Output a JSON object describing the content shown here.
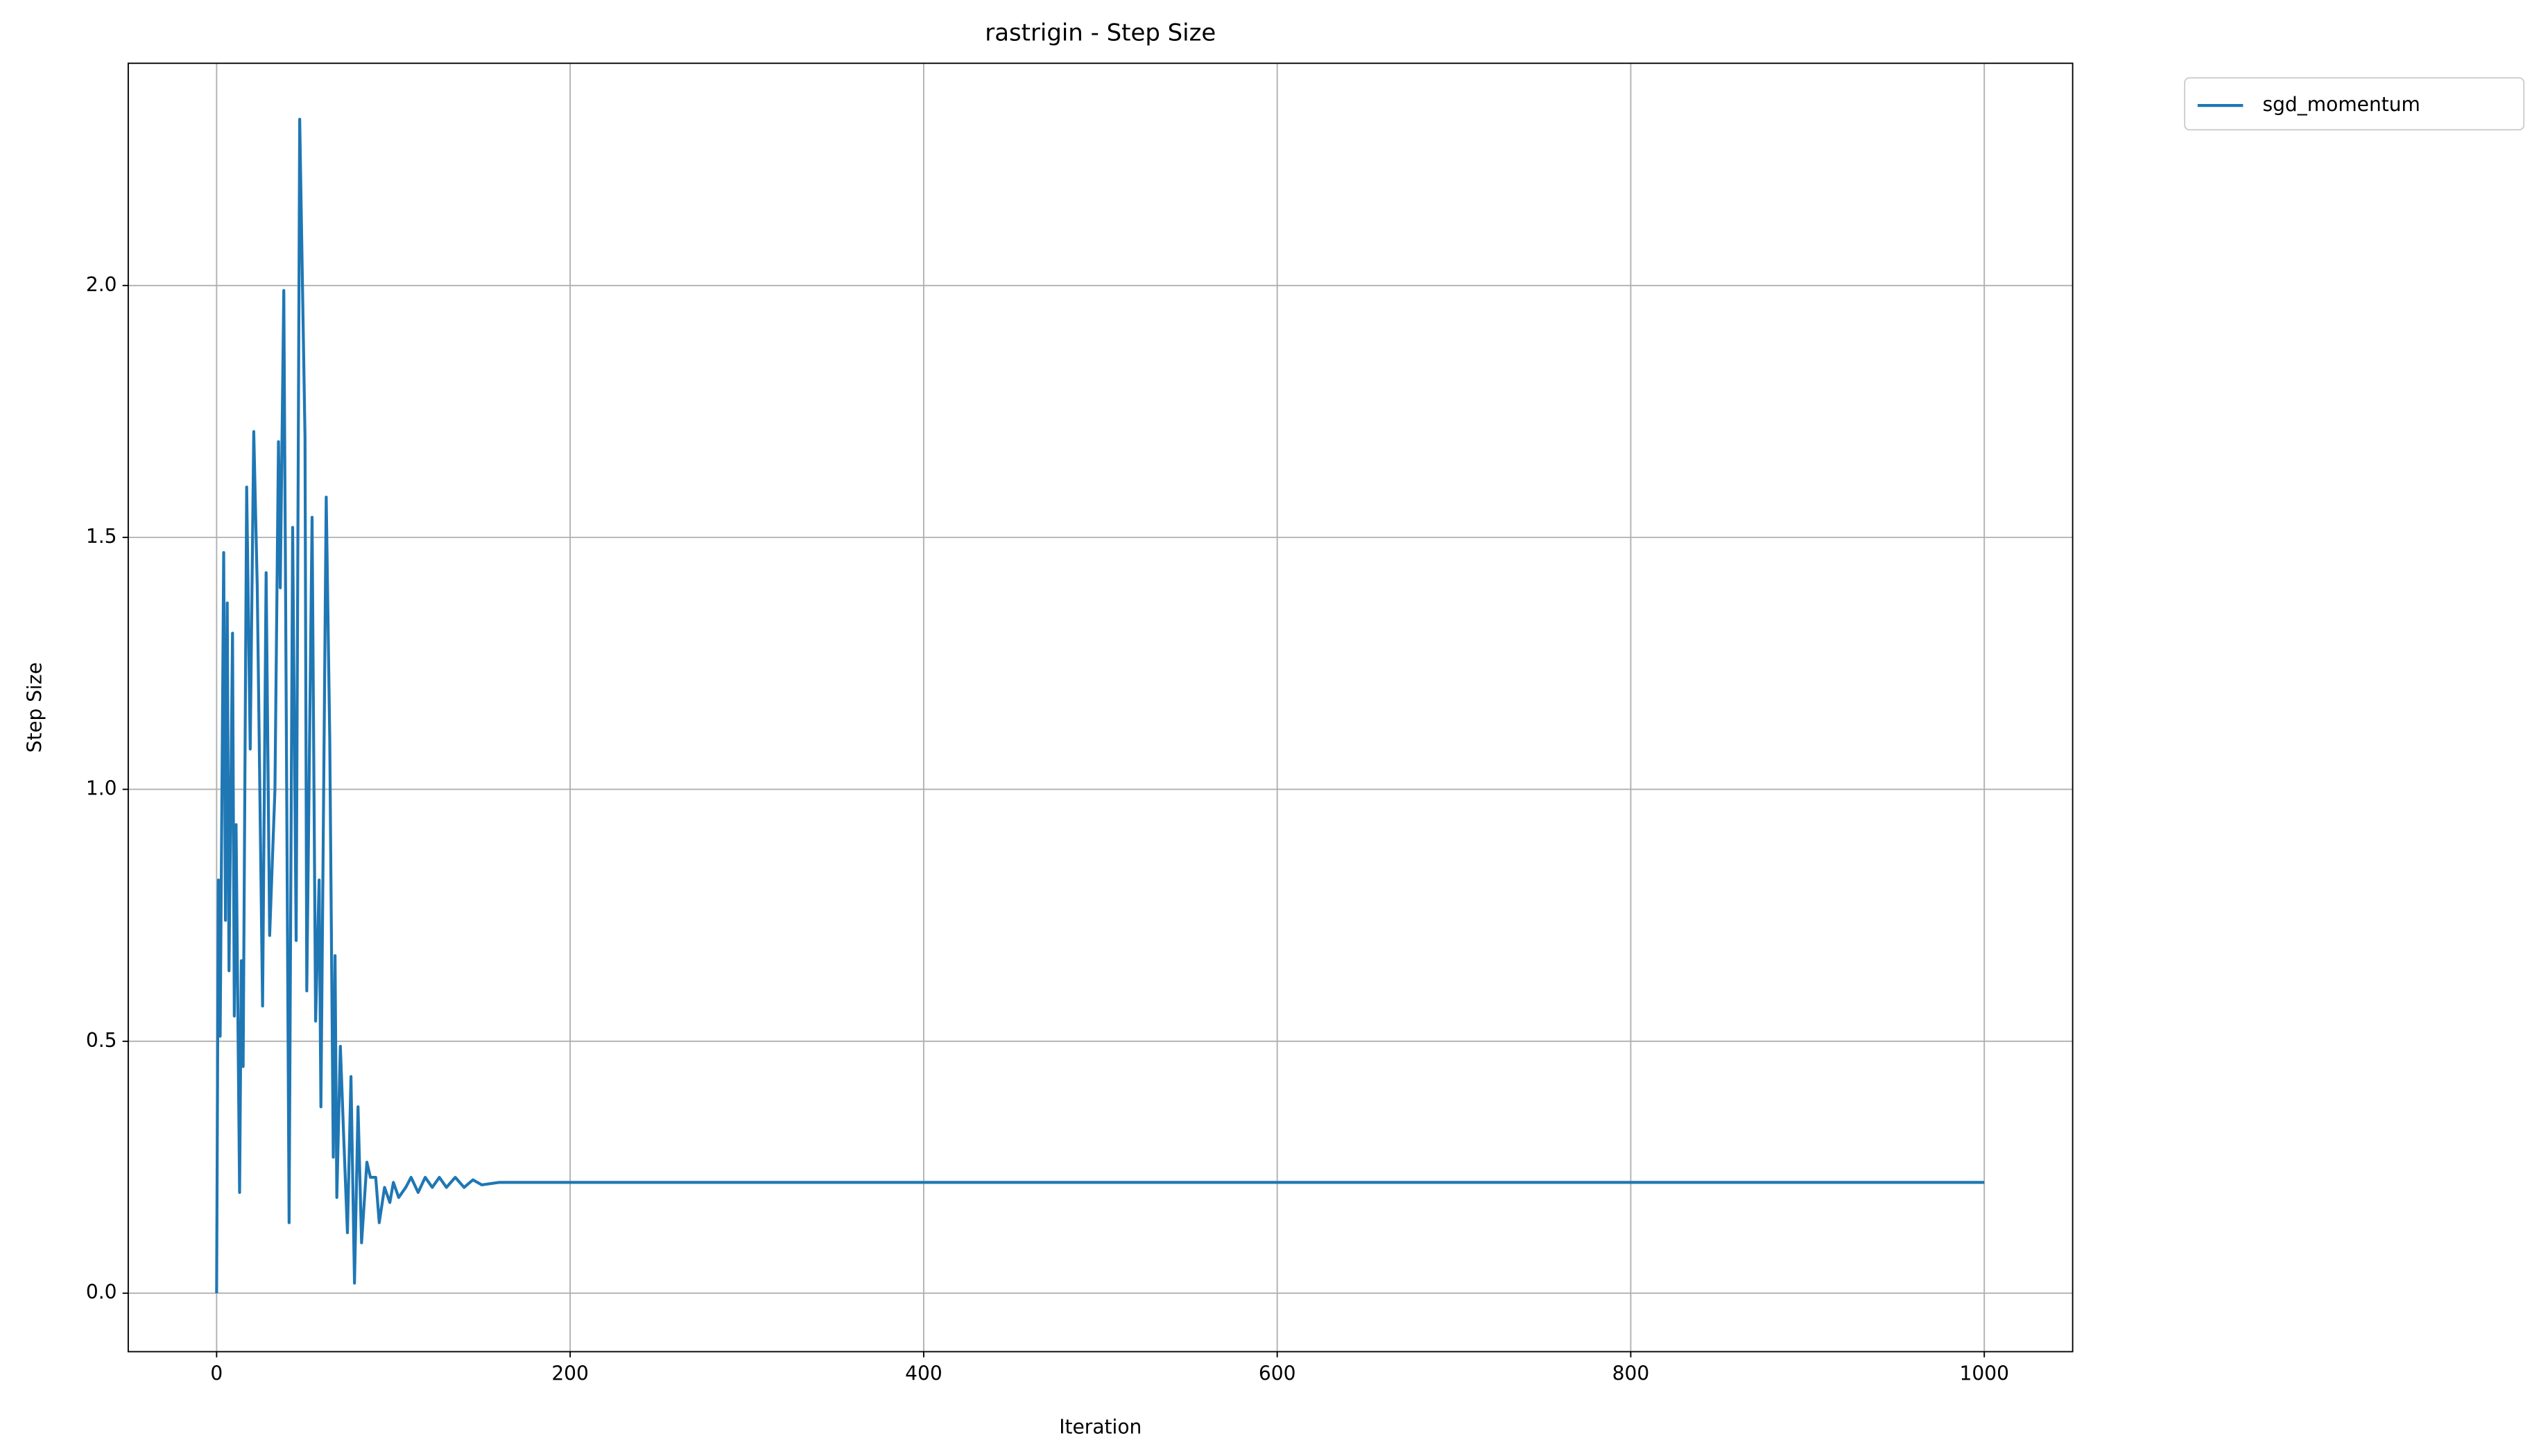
{
  "chart_data": {
    "type": "line",
    "title": "rastrigin - Step Size",
    "x_label": "Iteration",
    "y_label": "Step Size",
    "x": [
      0,
      1,
      2,
      4,
      5,
      6,
      7,
      9,
      10,
      11,
      13,
      14,
      15,
      17,
      19,
      21,
      23,
      26,
      28,
      30,
      33,
      35,
      36,
      38,
      39,
      41,
      43,
      45,
      47,
      50,
      51,
      54,
      56,
      58,
      59,
      62,
      64,
      66,
      67,
      68,
      70,
      72,
      74,
      76,
      78,
      80,
      82,
      85,
      87,
      90,
      92,
      95,
      98,
      100,
      103,
      107,
      110,
      114,
      118,
      122,
      126,
      130,
      135,
      140,
      145,
      150,
      160,
      200,
      250,
      300,
      350,
      400,
      450,
      500,
      550,
      600,
      650,
      700,
      750,
      800,
      850,
      900,
      950,
      1000
    ],
    "series": [
      {
        "name": "sgd_momentum",
        "color": "#1f77b4",
        "values": [
          0,
          0.82,
          0.51,
          1.47,
          0.74,
          1.37,
          0.64,
          1.31,
          0.55,
          0.93,
          0.2,
          0.66,
          0.45,
          1.6,
          1.08,
          1.71,
          1.4,
          0.57,
          1.43,
          0.71,
          1.0,
          1.69,
          1.4,
          1.99,
          1.4,
          0.14,
          1.52,
          0.7,
          2.33,
          1.7,
          0.6,
          1.54,
          0.54,
          0.82,
          0.37,
          1.58,
          1.1,
          0.27,
          0.67,
          0.19,
          0.49,
          0.3,
          0.12,
          0.43,
          0.02,
          0.37,
          0.1,
          0.26,
          0.23,
          0.23,
          0.14,
          0.21,
          0.18,
          0.22,
          0.19,
          0.21,
          0.23,
          0.2,
          0.23,
          0.21,
          0.23,
          0.21,
          0.23,
          0.21,
          0.225,
          0.215,
          0.22,
          0.22,
          0.22,
          0.22,
          0.22,
          0.22,
          0.22,
          0.22,
          0.22,
          0.22,
          0.22,
          0.22,
          0.22,
          0.22,
          0.22,
          0.22,
          0.22,
          0.22
        ]
      }
    ],
    "xlim": [
      -50,
      1050
    ],
    "xticks": [
      0,
      200,
      400,
      600,
      800,
      1000
    ],
    "ylim": [
      -0.116,
      2.441
    ],
    "yticks": [
      {
        "value": 0,
        "label": "0.0"
      },
      0.5,
      {
        "value": 1,
        "label": "1.0"
      },
      1.5,
      {
        "value": 2,
        "label": "2.0"
      }
    ],
    "grid": true,
    "legend_loc": "outside-upper-right"
  }
}
